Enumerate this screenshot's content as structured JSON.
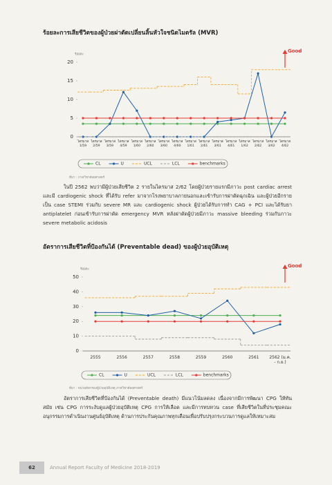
{
  "chart_data": [
    {
      "type": "line",
      "title": "ร้อยละการเสียชีวิตของผู้ป่วยผ่าตัดเปลี่ยนลิ้นหัวใจชนิดไมตรัล (MVR)",
      "y_label": "ร้อยละ",
      "annotation": "Good",
      "categories": [
        "ไตรมาส 1/59",
        "ไตรมาส 2/59",
        "ไตรมาส 3/59",
        "ไตรมาส 4/59",
        "ไตรมาส 1/60",
        "ไตรมาส 2/60",
        "ไตรมาส 3/60",
        "ไตรมาส 4/60",
        "ไตรมาส 1/61",
        "ไตรมาส 2/61",
        "ไตรมาส 3/61",
        "ไตรมาส 4/61",
        "ไตรมาส 1/62",
        "ไตรมาส 2/62",
        "ไตรมาส 3/62",
        "ไตรมาส 4/62"
      ],
      "series": [
        {
          "name": "CL",
          "color": "#4caf50",
          "markers": true,
          "values": [
            3.5,
            3.5,
            3.5,
            3.5,
            3.5,
            3.5,
            3.5,
            3.5,
            3.5,
            3.5,
            3.5,
            3.5,
            3.5,
            3.5,
            3.5,
            3.5
          ]
        },
        {
          "name": "U",
          "color": "#1f5fa8",
          "markers": true,
          "values": [
            0,
            0,
            3.5,
            12,
            7,
            0,
            0,
            0,
            0,
            0,
            4,
            4.5,
            5,
            17,
            0,
            6.5
          ]
        },
        {
          "name": "UCL",
          "color": "#f2a51f",
          "dashed": true,
          "step": true,
          "values": [
            12,
            12,
            12.5,
            12.5,
            13,
            13,
            13.5,
            13.5,
            14,
            16,
            14,
            14,
            11.5,
            18,
            18,
            18
          ]
        },
        {
          "name": "LCL",
          "color": "#999999",
          "dashed": true,
          "step": true,
          "values": [
            0,
            0,
            0,
            0,
            0,
            0,
            0,
            0,
            0,
            0,
            0,
            0,
            0,
            0,
            0,
            0
          ]
        },
        {
          "name": "benchmarks",
          "color": "#e53935",
          "markers": true,
          "values": [
            5,
            5,
            5,
            5,
            5,
            5,
            5,
            5,
            5,
            5,
            5,
            5,
            5,
            5,
            5,
            5
          ]
        }
      ],
      "ylim": [
        0,
        20
      ],
      "yticks": [
        0,
        5,
        10,
        15,
        20
      ],
      "grid": false
    },
    {
      "type": "line",
      "title": "อัตราการเสียชีวิตที่ป้องกันได้ (Preventable dead) ของผู้ป่วยอุบัติเหตุ",
      "y_label": "ร้อยละ",
      "annotation": "Good",
      "categories": [
        "2555",
        "2556",
        "2557",
        "2558",
        "2559",
        "2560",
        "2561",
        "2562 (ม.ค. - ก.ย.)"
      ],
      "series": [
        {
          "name": "CL",
          "color": "#4caf50",
          "markers": true,
          "values": [
            24,
            24,
            24,
            24,
            24,
            24,
            24,
            24
          ]
        },
        {
          "name": "U",
          "color": "#1f5fa8",
          "markers": true,
          "values": [
            26,
            26,
            24,
            27,
            22,
            34,
            12,
            18
          ]
        },
        {
          "name": "UCL",
          "color": "#f2a51f",
          "dashed": true,
          "step": true,
          "values": [
            36,
            36,
            37,
            37,
            39,
            42,
            43,
            43
          ]
        },
        {
          "name": "LCL",
          "color": "#999999",
          "dashed": true,
          "step": true,
          "values": [
            10,
            10,
            8,
            9,
            9,
            8,
            4,
            4
          ]
        },
        {
          "name": "benchmarks",
          "color": "#e53935",
          "markers": true,
          "values": [
            20,
            20,
            20,
            20,
            20,
            20,
            20,
            20
          ]
        }
      ],
      "ylim": [
        0,
        50
      ],
      "yticks": [
        0,
        10,
        20,
        30,
        40,
        50
      ],
      "grid": false
    }
  ],
  "document": {
    "sources": [
      "ที่มา : ภาควิชาศัลยศาสตร์",
      "ที่มา : หน่วยคัดกรองผู้ป่วยอุบัติเหตุ ภาควิชาศัลยศาสตร์"
    ],
    "paragraphs": [
      "ในปี 2562 พบว่ามีผู้ป่วยเสียชีวิต 2 รายในไตรมาส 2/62 โดยผู้ป่วยรายแรกมีภาวะ post cardiac arrest และมี cardiogenic shock ที่ได้รับ refer มาจากโรงพยาบาลภายนอกและเข้ารับการผ่าตัดฉุกเฉิน และผู้ป่วยอีกรายเป็น case STEMI ร่วมกับ severe MR และ cardiogenic shock ผู้ป่วยได้รับการทำ CAG + PCI และได้รับยา antiplatelet ก่อนเข้ารับการผ่าตัด emergency MVR หลังผ่าตัดผู้ป่วยมีภาวะ massive bleeding ร่วมกับภาวะ severe metabolic acidosis",
      "อัตราการเสียชีวิตที่ป้องกันได้ (Preventable death) มีแนวโน้มลดลง เนื่องจากมีการพัฒนา CPG ให้ทันสมัย เช่น CPG การระงับดูแลผู้ป่วยอุบัติเหตุ CPG การให้เลือด และมีการทบทวน case ที่เสียชีวิตในที่ประชุมคณะอนุกรรมการดำเนินงานศูนย์อุบัติเหตุ ด้านการประกันคุณภาพทุกเดือนเพื่อปรับปรุงกระบวนการดูแลให้เหมาะสม"
    ],
    "footer": {
      "page": "62",
      "text": "Annual Report Faculty of Medicine 2018-2019"
    }
  }
}
